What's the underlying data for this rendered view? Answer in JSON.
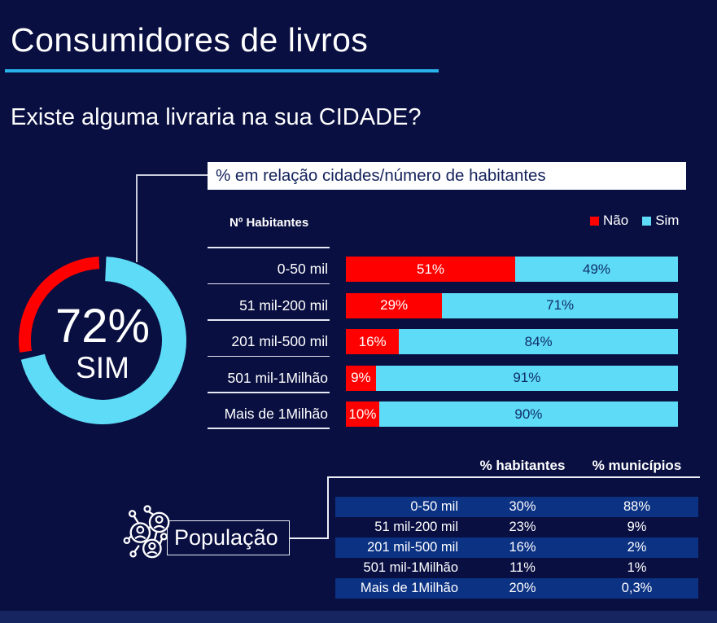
{
  "header": {
    "title": "Consumidores de livros",
    "question": "Existe alguma livraria na sua CIDADE?"
  },
  "colors": {
    "background": "#090f41",
    "accent_cyan": "#29b1e9",
    "nao_red": "#ff0000",
    "sim_blue": "#5edbf6",
    "navy_text_on_light": "#14235c",
    "navy_text_on_blue": "#0f2d6b",
    "table_highlight_row": "#0c3284",
    "bottom_bar": "#16245f",
    "connector_line": "#c9cddb"
  },
  "chart_data": [
    {
      "type": "pie",
      "title": "Donut: share of cities with a bookstore",
      "labels": [
        "Sim",
        "Não"
      ],
      "values": [
        72,
        28
      ],
      "colors": [
        "#5edbf6",
        "#ff0000"
      ],
      "center_value": "72%",
      "center_text": "SIM"
    },
    {
      "type": "bar",
      "orientation": "horizontal-stacked",
      "title": "% em relação cidades/número de habitantes",
      "column_header": "Nº Habitantes",
      "categories": [
        "0-50 mil",
        "51 mil-200 mil",
        "201 mil-500 mil",
        "501 mil-1Milhão",
        "Mais de 1Milhão"
      ],
      "series": [
        {
          "name": "Não",
          "color": "#ff0000",
          "text_color": "#ffffff",
          "values": [
            51,
            29,
            16,
            9,
            10
          ]
        },
        {
          "name": "Sim",
          "color": "#5edbf6",
          "text_color": "#0f2d6b",
          "values": [
            49,
            71,
            84,
            91,
            90
          ]
        }
      ],
      "value_suffix": "%",
      "xlim": [
        0,
        100
      ],
      "legend_position": "top-right"
    },
    {
      "type": "table",
      "title": "População",
      "columns": [
        "",
        "% habitantes",
        "% municípios"
      ],
      "rows": [
        [
          "0-50 mil",
          "30%",
          "88%"
        ],
        [
          "51 mil-200 mil",
          "23%",
          "9%"
        ],
        [
          "201 mil-500 mil",
          "16%",
          "2%"
        ],
        [
          "501 mil-1Milhão",
          "11%",
          "1%"
        ],
        [
          "Mais de 1Milhão",
          "20%",
          "0,3%"
        ]
      ],
      "highlighted_row_indexes": [
        0,
        2,
        4
      ]
    }
  ]
}
